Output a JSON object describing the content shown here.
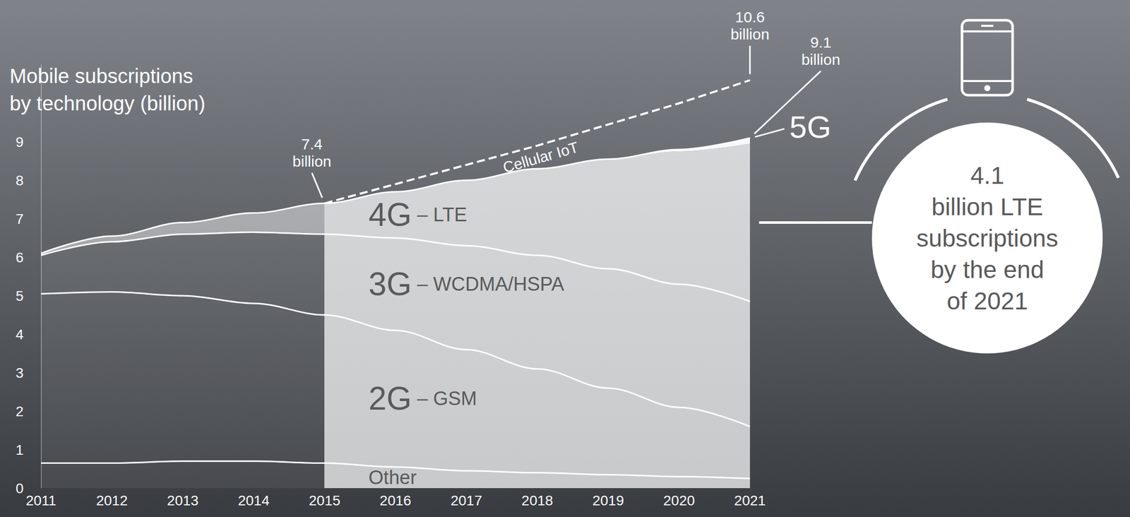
{
  "chart_data": {
    "type": "area",
    "title": "Mobile subscriptions\nby technology (billion)",
    "categories": [
      "2011",
      "2012",
      "2013",
      "2014",
      "2015",
      "2016",
      "2017",
      "2018",
      "2019",
      "2020",
      "2021"
    ],
    "stacked": true,
    "grid": false,
    "ylim": [
      0,
      11
    ],
    "yticks": [
      0,
      1,
      2,
      3,
      4,
      5,
      6,
      7,
      8,
      9
    ],
    "series": [
      {
        "name": "Other",
        "type": "area",
        "color": "#ffffff",
        "values": [
          0.65,
          0.65,
          0.7,
          0.7,
          0.65,
          0.55,
          0.45,
          0.4,
          0.35,
          0.3,
          0.25
        ]
      },
      {
        "name": "2G – GSM",
        "type": "area",
        "color": "#ffffff",
        "values": [
          4.4,
          4.45,
          4.3,
          4.1,
          3.85,
          3.55,
          3.15,
          2.7,
          2.25,
          1.8,
          1.35
        ]
      },
      {
        "name": "3G – WCDMA/HSPA",
        "type": "area",
        "color": "#ffffff",
        "values": [
          1.0,
          1.3,
          1.6,
          1.85,
          2.1,
          2.4,
          2.7,
          2.95,
          3.1,
          3.2,
          3.25
        ]
      },
      {
        "name": "4G – LTE",
        "type": "area",
        "color": "#ffffff",
        "values": [
          0.05,
          0.15,
          0.3,
          0.5,
          0.8,
          1.2,
          1.7,
          2.25,
          2.85,
          3.45,
          4.1
        ]
      },
      {
        "name": "5G",
        "type": "area",
        "color": "#ffffff",
        "values": [
          0,
          0,
          0,
          0,
          0,
          0,
          0,
          0,
          0,
          0.05,
          0.15
        ]
      },
      {
        "name": "Cellular IoT",
        "type": "line",
        "line_style": "dashed",
        "color": "#ffffff",
        "values": [
          null,
          null,
          null,
          null,
          7.4,
          7.9,
          8.4,
          8.9,
          9.45,
          10.0,
          10.6
        ]
      }
    ],
    "annotations": [
      {
        "text": "7.4\nbillion",
        "x": "2015",
        "y": 7.4
      },
      {
        "text": "10.6\nbillion",
        "x": "2021",
        "y": 10.6
      },
      {
        "text": "9.1\nbillion",
        "x": "2021",
        "y": 9.1
      },
      {
        "text": "4.1\nbillion LTE\nsubscriptions\nby the end\nof 2021",
        "series": "4G – LTE"
      }
    ]
  }
}
